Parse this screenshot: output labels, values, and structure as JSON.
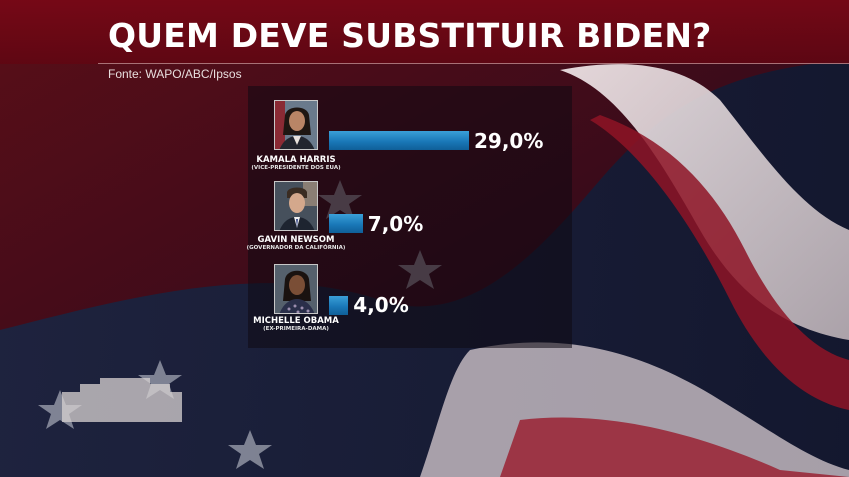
{
  "header": {
    "title": "QUEM DEVE SUBSTITUIR BIDEN?",
    "source": "Fonte: WAPO/ABC/Ipsos"
  },
  "colors": {
    "bar": "#1a78b8",
    "band": "#780816",
    "text": "#ffffff"
  },
  "chart_data": {
    "type": "bar",
    "title": "QUEM DEVE SUBSTITUIR BIDEN?",
    "categories": [
      "KAMALA HARRIS",
      "GAVIN NEWSOM",
      "MICHELLE OBAMA"
    ],
    "subtitles": [
      "(VICE-PRESIDENTE DOS EUA)",
      "(GOVERNADOR DA CALIFÓRNIA)",
      "(EX-PRIMEIRA-DAMA)"
    ],
    "values": [
      29.0,
      7.0,
      4.0
    ],
    "value_labels": [
      "29,0%",
      "7,0%",
      "4,0%"
    ],
    "orientation": "horizontal",
    "xlim": [
      0,
      29
    ],
    "grid": false,
    "legend": "none"
  }
}
